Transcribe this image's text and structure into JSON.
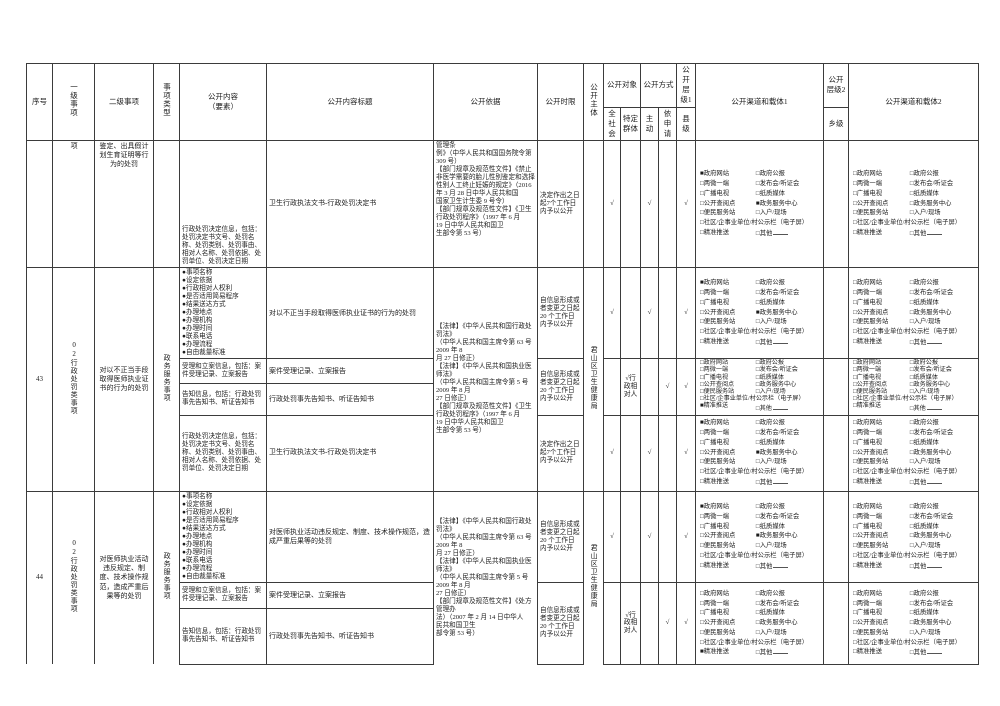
{
  "header": {
    "xuhao": "序号",
    "yiji": "一级事项",
    "erji": "二级事项",
    "leixing": "事项类型",
    "neirong": "公开内容\n（要素）",
    "biaoti": "公开内容标题",
    "yiju": "公开依据",
    "shixian": "公开时限",
    "zhuti": "公开主体",
    "duixiang": "公开对象",
    "quanshehui": "全社会",
    "teding": "特定群体",
    "fangshi": "公开方式",
    "zhudong": "主动",
    "yishenqing": "依申请",
    "cengji1": "公开层级1",
    "xianji": "县级",
    "qudao1": "公开渠道和载体1",
    "cengji2": "公开层级2",
    "xiangji": "乡级",
    "qudao2": "公开渠道和载体2"
  },
  "channels_template": [
    {
      "label": "政府网站"
    },
    {
      "label": "政府公报"
    },
    {
      "label": "两微一端"
    },
    {
      "label": "发布会/听证会"
    },
    {
      "label": "广播电视"
    },
    {
      "label": "纸质媒体"
    },
    {
      "label": "公开查阅点"
    },
    {
      "label": "政务服务中心"
    },
    {
      "label": "便民服务站"
    },
    {
      "label": "入户/现场"
    },
    {
      "label": "社区/企事业单位/村公示栏（电子屏）",
      "full": true
    },
    {
      "label": "精准推送"
    },
    {
      "label": "其他",
      "other": true
    }
  ],
  "rows": {
    "partial": {
      "yiji_tail": "项",
      "erji": "鉴定、出具假计划生育证明等行为的处罚",
      "neirong": "行政处罚决定信息，包括：处罚决定书文号、处罚名称、处罚类别、处罚事由、相对人名称、处罚依据、处罚单位、处罚决定日期",
      "biaoti": "卫生行政执法文书-行政处罚决定书",
      "yiju": "管理条\n例》（中华人民共和国国务院令第\n309 号）\n【部门规章及规范性文件】《禁止\n非医学需要的胎儿性别鉴定和选择\n性别人工终止妊娠的规定》（2016\n年 3 月 28 日中华人民共和国\n国家卫生计生委 9 号令）\n【部门规章及规范性文件】《卫生\n行政处罚程序》（1997 年 6 月\n19 日中华人民共和国卫\n生部令第 53 号）",
      "shixian": "决定作出之日\n起7个工作日\n内予以公开",
      "marks": {
        "quanshehui": "√",
        "teding": "",
        "zhudong": "√",
        "yishenqing": "",
        "xianji": "√"
      },
      "ch1": [
        "政府网站",
        "政务服务中心"
      ],
      "ch2": []
    },
    "r43": {
      "xuhao": "43",
      "yiji": "02行政处罚类事项",
      "erji": "对以不正当手段取得医师执业证书的行为的处罚",
      "leixing": "政务服务事项",
      "zhuti": "君山区卫生健康局",
      "yiju": "【法律】《中华人民共和国行政处\n罚法》\n（中华人民共和国主席令第 63 号\n2009 年 8\n月 27 日修正）\n【法律】《中华人民共和国执业医\n师法》\n（中华人民共和国主席令第 5 号\n2009 年 8 月\n27 日修正）\n【部门规章及规范性文件】《卫生\n行政处罚程序》（1997 年 6 月\n19 日中华人民共和国卫\n生部令第 53 号）",
      "content": [
        {
          "neirong": "●事项名称\n●设定依据\n●行政相对人权利\n●是否适用简易程序\n●结果送达方式\n●办理地点\n●办理机构\n●办理时间\n●联系电话\n●办理流程\n●自由裁量标准",
          "biaoti": "对以不正当手段取得医师执业证书的行为的处罚"
        },
        {
          "neirong": "受理和立案信息，包括：案件受理记录、立案报告",
          "biaoti": "案件受理记录、立案报告"
        },
        {
          "neirong": "告知信息，包括：行政处罚事先告知书、听证告知书",
          "biaoti": "行政处罚事先告知书、听证告知书"
        },
        {
          "neirong": "行政处罚决定信息，包括：处罚决定书文号、处罚名称、处罚类别、处罚事由、相对人名称、处罚依据、处罚单位、处罚决定日期",
          "biaoti": "卫生行政执法文书-行政处罚决定书"
        }
      ],
      "bands": [
        {
          "shixian": "自信息形成或\n者变更之日起\n20 个工作日\n内予以公开",
          "marks": {
            "quanshehui": "√",
            "teding": "",
            "zhudong": "√",
            "yishenqing": "",
            "xianji": "√"
          },
          "ch1": [
            "政府网站",
            "政务服务中心"
          ],
          "ch2": []
        },
        {
          "shixian": "自信息形成或\n者变更之日起\n20 个工作日\n内予以公开",
          "marks": {
            "quanshehui": "",
            "teding": "√行政相对人",
            "zhudong": "",
            "yishenqing": "√",
            "xianji": "√"
          },
          "ch1": [
            "精准推送"
          ],
          "ch2": []
        },
        {
          "shixian": "决定作出之日\n起7个工作日\n内予以公开",
          "marks": {
            "quanshehui": "√",
            "teding": "",
            "zhudong": "√",
            "yishenqing": "",
            "xianji": "√"
          },
          "ch1": [
            "政府网站",
            "政务服务中心"
          ],
          "ch2": []
        }
      ]
    },
    "r44": {
      "xuhao": "44",
      "yiji": "02行政处罚类事项",
      "erji": "对医师执业活动违反规定、制度、技术操作规范，造成严重后果等的处罚",
      "leixing": "政务服务事项",
      "zhuti": "君山区卫生健康局",
      "yiju": "【法律】《中华人民共和国行政处\n罚法》\n（中华人民共和国主席令第 63 号\n2009 年 8\n月 27 日修正）\n【法律】《中华人民共和国执业医\n师法》\n（中华人民共和国主席令第 5 号\n2009 年 8 月\n27 日修正）\n【部门规章及规范性文件】《处方\n管理办\n法）（2007 年 2 月 14 日中华人\n民共和国卫生\n部令第 53 号）",
      "content": [
        {
          "neirong": "●事项名称\n●设定依据\n●行政相对人权利\n●是否适用简易程序\n●结果送达方式\n●办理地点\n●办理机构\n●办理时间\n●联系电话\n●办理流程\n●自由裁量标准",
          "biaoti": "对医师执业活动违反规定、制度、技术操作规范，造成严重后果等的处罚"
        },
        {
          "neirong": "受理和立案信息，包括：案件受理记录、立案报告",
          "biaoti": "案件受理记录、立案报告"
        },
        {
          "neirong": "告知信息，包括：行政处罚事先告知书、听证告知书",
          "biaoti": "行政处罚事先告知书、听证告知书"
        }
      ],
      "bands": [
        {
          "shixian": "自信息形成或\n者变更之日起\n20 个工作日\n内予以公开",
          "marks": {
            "quanshehui": "√",
            "teding": "",
            "zhudong": "√",
            "yishenqing": "",
            "xianji": "√"
          },
          "ch1": [
            "政府网站",
            "政务服务中心"
          ],
          "ch2": []
        },
        {
          "shixian": "自信息形成或\n者变更之日起\n20 个工作日\n内予以公开",
          "marks": {
            "quanshehui": "",
            "teding": "√行政相对人",
            "zhudong": "",
            "yishenqing": "√",
            "xianji": "√"
          },
          "ch1": [
            "精准推送"
          ],
          "ch2": []
        }
      ]
    }
  }
}
